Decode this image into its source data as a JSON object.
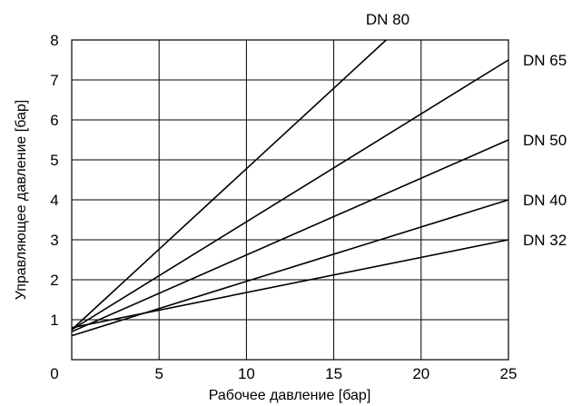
{
  "chart_data": {
    "type": "line",
    "title": "",
    "xlabel": "Рабочее давление [бар]",
    "ylabel": "Управляющее давление [бар]",
    "xlim": [
      0,
      25
    ],
    "ylim": [
      0,
      8
    ],
    "xticks": [
      0,
      5,
      10,
      15,
      20,
      25
    ],
    "yticks": [
      1,
      2,
      3,
      4,
      5,
      6,
      7,
      8
    ],
    "grid": true,
    "legend": "series labels at line ends",
    "series": [
      {
        "name": "DN 80",
        "x": [
          0,
          18
        ],
        "y": [
          0.75,
          8.0
        ]
      },
      {
        "name": "DN 65",
        "x": [
          0,
          25
        ],
        "y": [
          0.75,
          7.5
        ]
      },
      {
        "name": "DN 50",
        "x": [
          0,
          25
        ],
        "y": [
          0.7,
          5.5
        ]
      },
      {
        "name": "DN 40",
        "x": [
          0,
          25
        ],
        "y": [
          0.6,
          4.0
        ]
      },
      {
        "name": "DN 32",
        "x": [
          0,
          25
        ],
        "y": [
          0.8,
          3.0
        ]
      }
    ]
  }
}
